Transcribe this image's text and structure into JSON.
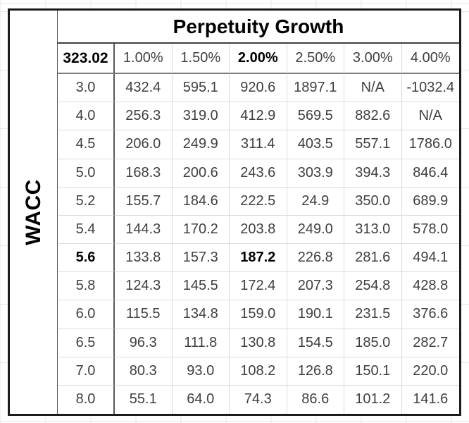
{
  "table": {
    "title": "Perpetuity Growth",
    "row_axis_label": "WACC",
    "base_value": "323.02",
    "column_headers": [
      "1.00%",
      "1.50%",
      "2.00%",
      "2.50%",
      "3.00%",
      "4.00%"
    ],
    "rows": [
      {
        "wacc": "3.0",
        "values": [
          "432.4",
          "595.1",
          "920.6",
          "1897.1",
          "N/A",
          "-1032.4"
        ]
      },
      {
        "wacc": "4.0",
        "values": [
          "256.3",
          "319.0",
          "412.9",
          "569.5",
          "882.6",
          "N/A"
        ]
      },
      {
        "wacc": "4.5",
        "values": [
          "206.0",
          "249.9",
          "311.4",
          "403.5",
          "557.1",
          "1786.0"
        ]
      },
      {
        "wacc": "5.0",
        "values": [
          "168.3",
          "200.6",
          "243.6",
          "303.9",
          "394.3",
          "846.4"
        ]
      },
      {
        "wacc": "5.2",
        "values": [
          "155.7",
          "184.6",
          "222.5",
          "24.9",
          "350.0",
          "689.9"
        ]
      },
      {
        "wacc": "5.4",
        "values": [
          "144.3",
          "170.2",
          "203.8",
          "249.0",
          "313.0",
          "578.0"
        ]
      },
      {
        "wacc": "5.6",
        "values": [
          "133.8",
          "157.3",
          "187.2",
          "226.8",
          "281.6",
          "494.1"
        ]
      },
      {
        "wacc": "5.8",
        "values": [
          "124.3",
          "145.5",
          "172.4",
          "207.3",
          "254.8",
          "428.8"
        ]
      },
      {
        "wacc": "6.0",
        "values": [
          "115.5",
          "134.8",
          "159.0",
          "190.1",
          "231.5",
          "376.6"
        ]
      },
      {
        "wacc": "6.5",
        "values": [
          "96.3",
          "111.8",
          "130.8",
          "154.5",
          "185.0",
          "282.7"
        ]
      },
      {
        "wacc": "7.0",
        "values": [
          "80.3",
          "93.0",
          "108.2",
          "126.8",
          "150.1",
          "220.0"
        ]
      },
      {
        "wacc": "8.0",
        "values": [
          "55.1",
          "64.0",
          "74.3",
          "86.6",
          "101.2",
          "141.6"
        ]
      }
    ],
    "highlight": {
      "column_index": 2,
      "row_index": 6,
      "highlighted_column_label": "2.00%",
      "highlighted_row_label": "5.6",
      "highlighted_value": "187.2",
      "base_value_bold": true
    }
  },
  "colors": {
    "outer_border": "#1c1c1c",
    "strong_line": "#595959",
    "medium_line": "#7f7f7f",
    "light_line": "#dcdcdc",
    "margin_gridline": "#e7e7e7",
    "text": "#3f3f3f",
    "emphasis_text": "#000000",
    "background": "#ffffff"
  }
}
